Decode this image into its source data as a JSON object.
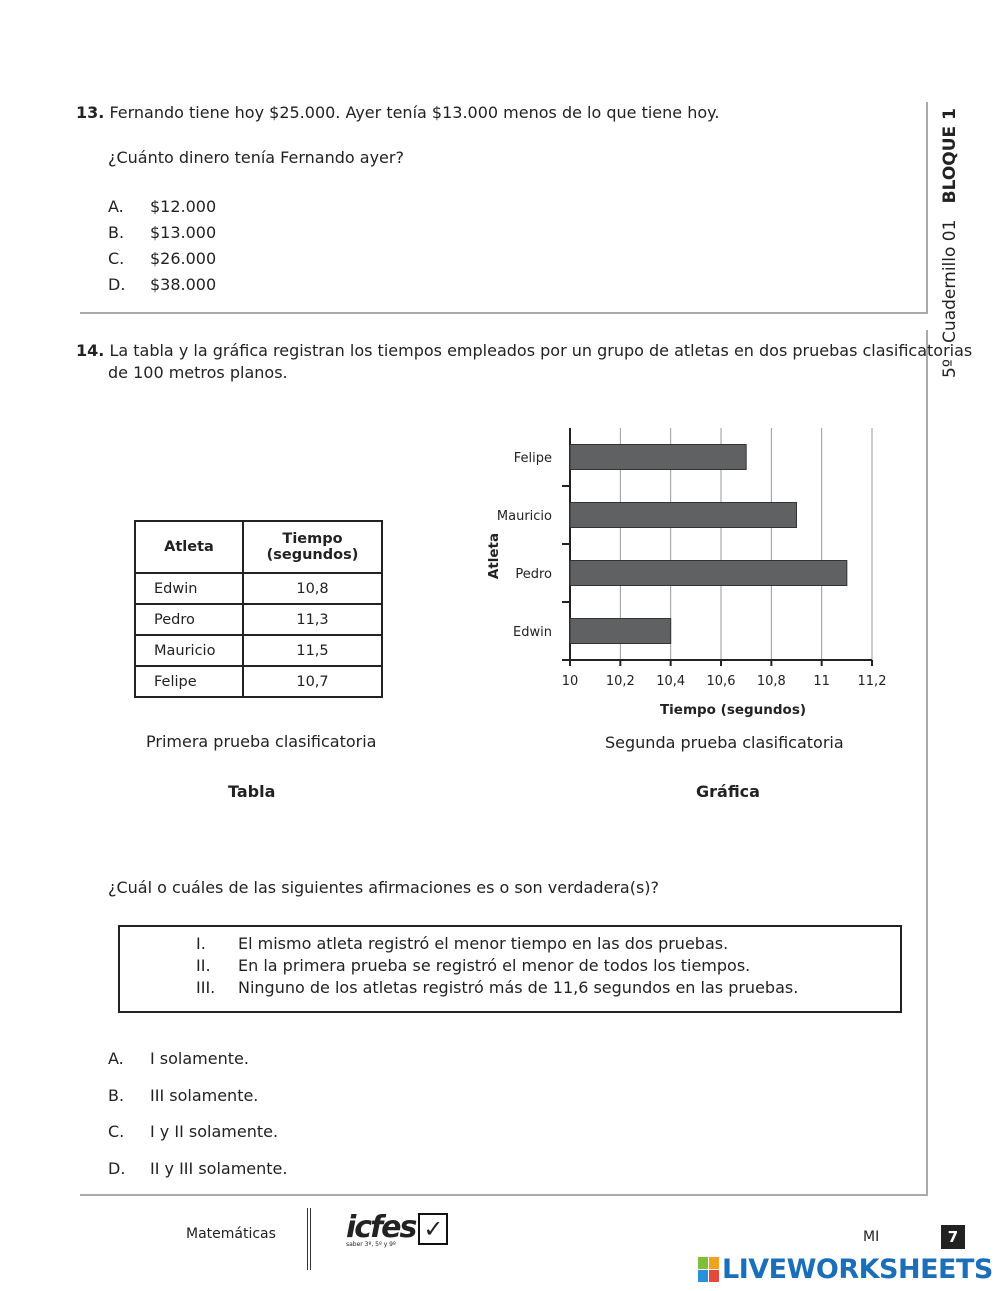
{
  "side_label": {
    "grade": "5º",
    "booklet": "Cuadernillo 01",
    "block": "BLOQUE 1"
  },
  "q13": {
    "number": "13.",
    "statement": "Fernando tiene hoy $25.000. Ayer tenía $13.000 menos de lo que tiene hoy.",
    "question": "¿Cuánto dinero tenía Fernando ayer?",
    "options": [
      {
        "letter": "A.",
        "text": "$12.000"
      },
      {
        "letter": "B.",
        "text": "$13.000"
      },
      {
        "letter": "C.",
        "text": "$26.000"
      },
      {
        "letter": "D.",
        "text": "$38.000"
      }
    ]
  },
  "q14": {
    "number": "14.",
    "statement_line1": "La tabla y la gráfica registran los tiempos empleados por un grupo de atletas en dos pruebas clasificatorias",
    "statement_line2": "de 100 metros planos.",
    "table": {
      "headers": [
        "Atleta",
        "Tiempo",
        "(segundos)"
      ],
      "rows": [
        [
          "Edwin",
          "10,8"
        ],
        [
          "Pedro",
          "11,3"
        ],
        [
          "Mauricio",
          "11,5"
        ],
        [
          "Felipe",
          "10,7"
        ]
      ],
      "caption": "Primera prueba clasificatoria",
      "label": "Tabla"
    },
    "chart_caption": "Segunda prueba clasificatoria",
    "chart_label": "Gráfica",
    "question": "¿Cuál o cuáles de las siguientes afirmaciones es o son verdadera(s)?",
    "statements": [
      {
        "num": "I.",
        "text": "El mismo atleta registró el menor tiempo en las dos pruebas."
      },
      {
        "num": "II.",
        "text": "En la primera prueba se registró el menor de todos los tiempos."
      },
      {
        "num": "III.",
        "text": "Ninguno de los atletas registró más de 11,6 segundos en las pruebas."
      }
    ],
    "options": [
      {
        "letter": "A.",
        "text": "I solamente."
      },
      {
        "letter": "B.",
        "text": "III solamente."
      },
      {
        "letter": "C.",
        "text": "I y II solamente."
      },
      {
        "letter": "D.",
        "text": "II y III solamente."
      }
    ]
  },
  "chart_data": {
    "type": "bar",
    "orientation": "horizontal",
    "categories": [
      "Felipe",
      "Mauricio",
      "Pedro",
      "Edwin"
    ],
    "values": [
      10.7,
      10.9,
      11.1,
      10.4
    ],
    "xlabel": "Tiempo (segundos)",
    "ylabel": "Atleta",
    "xlim": [
      10,
      11.2
    ],
    "xticks": [
      "10",
      "10,2",
      "10,4",
      "10,6",
      "10,8",
      "11",
      "11,2"
    ],
    "grid": true,
    "bar_color": "#5f6163"
  },
  "footer": {
    "subject": "Matemáticas",
    "logo": "icfes saber 3º, 5º y 9º",
    "code": "MI",
    "page": "7",
    "watermark": "LIVEWORKSHEETS"
  }
}
